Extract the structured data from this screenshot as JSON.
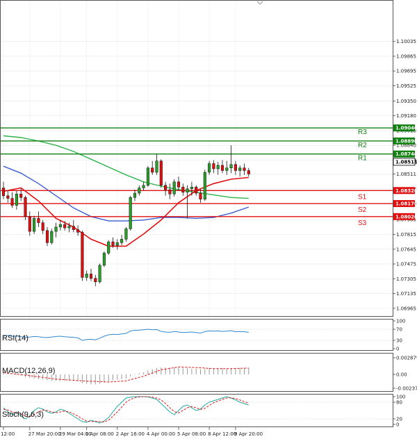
{
  "chart_data": [
    {
      "type": "candlestick",
      "title": "",
      "ylim": [
        1.069,
        1.104
      ],
      "y_ticks": [
        "1.10035",
        "1.09865",
        "1.09695",
        "1.09525",
        "1.09350",
        "1.09180",
        "1.09010",
        "1.08840",
        "1.08670",
        "1.08511",
        "1.08340",
        "1.08170",
        "1.07985",
        "1.07815",
        "1.07645",
        "1.07475",
        "1.07305",
        "1.07135",
        "1.06965"
      ],
      "x_ticks": [
        "12:00",
        "27 Mar 20:00",
        "29 Mar 04:00",
        "1 Apr 08:00",
        "2 Apr 16:00",
        "4 Apr 00:00",
        "5 Apr 08:00",
        "8 Apr 12:00",
        "9 Apr 20:00"
      ],
      "current_price": "1.08511",
      "levels": [
        {
          "name": "R3",
          "value": 1.0904,
          "label": "1.09040",
          "color": "#108010"
        },
        {
          "name": "R2",
          "value": 1.0889,
          "label": "1.08890",
          "color": "#108010"
        },
        {
          "name": "R1",
          "value": 1.0874,
          "label": "1.08740",
          "color": "#108010"
        },
        {
          "name": "S1",
          "value": 1.0832,
          "label": "1.08320",
          "color": "#e01010"
        },
        {
          "name": "S2",
          "value": 1.0817,
          "label": "1.08170",
          "color": "#e01010"
        },
        {
          "name": "S3",
          "value": 1.0802,
          "label": "1.08020",
          "color": "#e01010"
        }
      ],
      "candles": [
        [
          1.0835,
          1.0842,
          1.0822,
          1.0826
        ],
        [
          1.0826,
          1.0832,
          1.0818,
          1.0823
        ],
        [
          1.0823,
          1.083,
          1.0812,
          1.0815
        ],
        [
          1.0815,
          1.0832,
          1.081,
          1.0828
        ],
        [
          1.0828,
          1.0834,
          1.082,
          1.0824
        ],
        [
          1.0824,
          1.0826,
          1.0798,
          1.0802
        ],
        [
          1.0802,
          1.0808,
          1.078,
          1.0785
        ],
        [
          1.0785,
          1.0803,
          1.0782,
          1.08
        ],
        [
          1.08,
          1.0808,
          1.079,
          1.0795
        ],
        [
          1.0795,
          1.0798,
          1.0782,
          1.0786
        ],
        [
          1.0786,
          1.079,
          1.0768,
          1.0772
        ],
        [
          1.0772,
          1.0788,
          1.077,
          1.0785
        ],
        [
          1.0785,
          1.0795,
          1.0778,
          1.079
        ],
        [
          1.079,
          1.0798,
          1.0786,
          1.0793
        ],
        [
          1.0793,
          1.0797,
          1.0786,
          1.0789
        ],
        [
          1.0789,
          1.0795,
          1.0784,
          1.0791
        ],
        [
          1.0791,
          1.0798,
          1.0784,
          1.0787
        ],
        [
          1.0787,
          1.0792,
          1.078,
          1.0784
        ],
        [
          1.0784,
          1.0786,
          1.0728,
          1.0732
        ],
        [
          1.0732,
          1.074,
          1.0728,
          1.0736
        ],
        [
          1.0736,
          1.0742,
          1.0728,
          1.0731
        ],
        [
          1.0731,
          1.0735,
          1.0722,
          1.0727
        ],
        [
          1.0727,
          1.0748,
          1.0725,
          1.0746
        ],
        [
          1.0746,
          1.0762,
          1.0744,
          1.076
        ],
        [
          1.076,
          1.0775,
          1.0758,
          1.0773
        ],
        [
          1.0773,
          1.0778,
          1.0766,
          1.0769
        ],
        [
          1.0769,
          1.0776,
          1.0764,
          1.0772
        ],
        [
          1.0772,
          1.0781,
          1.0769,
          1.0776
        ],
        [
          1.0776,
          1.079,
          1.0773,
          1.0788
        ],
        [
          1.0788,
          1.0826,
          1.0786,
          1.0824
        ],
        [
          1.0824,
          1.0833,
          1.082,
          1.0829
        ],
        [
          1.0829,
          1.0838,
          1.0826,
          1.0835
        ],
        [
          1.0835,
          1.0842,
          1.0832,
          1.0838
        ],
        [
          1.0838,
          1.086,
          1.0836,
          1.0858
        ],
        [
          1.0858,
          1.0866,
          1.085,
          1.0853
        ],
        [
          1.0853,
          1.0874,
          1.085,
          1.0866
        ],
        [
          1.0866,
          1.0868,
          1.0835,
          1.0838
        ],
        [
          1.0838,
          1.0842,
          1.0826,
          1.0833
        ],
        [
          1.0833,
          1.084,
          1.0822,
          1.0828
        ],
        [
          1.0828,
          1.0845,
          1.0825,
          1.0842
        ],
        [
          1.0842,
          1.0848,
          1.0832,
          1.0836
        ],
        [
          1.0836,
          1.084,
          1.0826,
          1.083
        ],
        [
          1.083,
          1.0838,
          1.08,
          1.0834
        ],
        [
          1.0834,
          1.0842,
          1.0826,
          1.0836
        ],
        [
          1.0836,
          1.0838,
          1.0826,
          1.0829
        ],
        [
          1.0829,
          1.0834,
          1.0818,
          1.0822
        ],
        [
          1.0822,
          1.0856,
          1.082,
          1.0853
        ],
        [
          1.0853,
          1.0866,
          1.085,
          1.0863
        ],
        [
          1.0863,
          1.0867,
          1.0852,
          1.0857
        ],
        [
          1.0857,
          1.0865,
          1.085,
          1.0861
        ],
        [
          1.0861,
          1.0867,
          1.0852,
          1.0855
        ],
        [
          1.0855,
          1.0866,
          1.085,
          1.0858
        ],
        [
          1.0858,
          1.0884,
          1.0852,
          1.0862
        ],
        [
          1.0862,
          1.0866,
          1.085,
          1.0855
        ],
        [
          1.0855,
          1.0861,
          1.0848,
          1.0858
        ],
        [
          1.0858,
          1.0863,
          1.085,
          1.0855
        ],
        [
          1.0855,
          1.0858,
          1.0848,
          1.0851
        ]
      ],
      "ma_fast": [
        [
          0,
          1.0831
        ],
        [
          4,
          1.0835
        ],
        [
          8,
          1.082
        ],
        [
          12,
          1.08
        ],
        [
          16,
          1.079
        ],
        [
          20,
          1.0776
        ],
        [
          24,
          1.0768
        ],
        [
          28,
          1.0768
        ],
        [
          32,
          1.0782
        ],
        [
          36,
          1.0798
        ],
        [
          40,
          1.0818
        ],
        [
          44,
          1.0832
        ],
        [
          48,
          1.084
        ],
        [
          52,
          1.0845
        ],
        [
          56,
          1.0847
        ]
      ],
      "ma_mid": [
        [
          0,
          1.086
        ],
        [
          4,
          1.0852
        ],
        [
          8,
          1.084
        ],
        [
          12,
          1.0826
        ],
        [
          16,
          1.0812
        ],
        [
          20,
          1.0802
        ],
        [
          24,
          1.0797
        ],
        [
          28,
          1.0797
        ],
        [
          32,
          1.0798
        ],
        [
          36,
          1.0801
        ],
        [
          40,
          1.0801
        ],
        [
          44,
          1.08
        ],
        [
          48,
          1.0801
        ],
        [
          52,
          1.0806
        ],
        [
          56,
          1.0813
        ]
      ],
      "ma_slow": [
        [
          0,
          1.0895
        ],
        [
          4,
          1.0893
        ],
        [
          8,
          1.0889
        ],
        [
          12,
          1.0884
        ],
        [
          16,
          1.0877
        ],
        [
          20,
          1.0868
        ],
        [
          24,
          1.0859
        ],
        [
          28,
          1.085
        ],
        [
          32,
          1.0842
        ],
        [
          36,
          1.0837
        ],
        [
          40,
          1.0833
        ],
        [
          44,
          1.083
        ],
        [
          48,
          1.0827
        ],
        [
          52,
          1.0824
        ],
        [
          56,
          1.0823
        ]
      ]
    },
    {
      "type": "line",
      "title": "RSI(14)",
      "ylim": [
        0,
        100
      ],
      "y_ticks": [
        "100",
        "70",
        "30",
        "0"
      ],
      "values": [
        45,
        48,
        44,
        46,
        43,
        41,
        42,
        44,
        43,
        41,
        40,
        42,
        44,
        45,
        43,
        42,
        41,
        39,
        30,
        33,
        34,
        32,
        38,
        45,
        50,
        52,
        51,
        53,
        55,
        64,
        66,
        67,
        68,
        70,
        68,
        69,
        62,
        60,
        59,
        62,
        60,
        58,
        59,
        60,
        58,
        56,
        62,
        64,
        63,
        64,
        62,
        63,
        65,
        61,
        62,
        61,
        59
      ]
    },
    {
      "type": "histogram",
      "title": "MACD(12,26,9)",
      "ylim": [
        -0.002379,
        0.002879
      ],
      "y_ticks": [
        "0.002879",
        "0.00",
        "-0.002379"
      ],
      "values": [
        0.0002,
        0.0001,
        0.0,
        -0.0001,
        -0.0002,
        -0.0004,
        -0.0006,
        -0.0007,
        -0.0008,
        -0.0009,
        -0.001,
        -0.0011,
        -0.0011,
        -0.0011,
        -0.0011,
        -0.0011,
        -0.0011,
        -0.0012,
        -0.0015,
        -0.0016,
        -0.0017,
        -0.0017,
        -0.0016,
        -0.0014,
        -0.0012,
        -0.001,
        -0.0009,
        -0.0008,
        -0.0007,
        -0.0004,
        -0.0001,
        0.0002,
        0.0004,
        0.0007,
        0.0009,
        0.0011,
        0.0012,
        0.0012,
        0.0012,
        0.0012,
        0.0012,
        0.0011,
        0.0011,
        0.001,
        0.001,
        0.0009,
        0.001,
        0.0011,
        0.0011,
        0.0011,
        0.0011,
        0.0011,
        0.0011,
        0.0011,
        0.0011,
        0.0011,
        0.0011
      ],
      "signal": [
        [
          0,
          0.0003
        ],
        [
          6,
          -0.0002
        ],
        [
          12,
          -0.0008
        ],
        [
          18,
          -0.0011
        ],
        [
          24,
          -0.0013
        ],
        [
          28,
          -0.0011
        ],
        [
          32,
          -0.0003
        ],
        [
          36,
          0.0008
        ],
        [
          40,
          0.0013
        ],
        [
          44,
          0.0012
        ],
        [
          48,
          0.001
        ],
        [
          52,
          0.001
        ],
        [
          56,
          0.0011
        ]
      ]
    },
    {
      "type": "line",
      "title": "Stoch(9,6,3)",
      "ylim": [
        0,
        100
      ],
      "y_ticks": [
        "100",
        "80",
        "20",
        "0"
      ],
      "series_main": [
        60,
        45,
        35,
        45,
        30,
        20,
        30,
        50,
        60,
        55,
        45,
        40,
        45,
        55,
        50,
        40,
        30,
        20,
        10,
        8,
        15,
        10,
        5,
        12,
        25,
        45,
        65,
        80,
        95,
        98,
        100,
        100,
        100,
        99,
        95,
        90,
        75,
        60,
        45,
        35,
        50,
        65,
        70,
        60,
        50,
        55,
        70,
        80,
        85,
        90,
        95,
        100,
        95,
        88,
        80,
        75,
        70
      ],
      "series_signal": [
        55,
        52,
        45,
        42,
        38,
        30,
        28,
        35,
        45,
        52,
        50,
        45,
        42,
        45,
        48,
        45,
        38,
        30,
        20,
        12,
        10,
        11,
        10,
        9,
        15,
        30,
        45,
        62,
        80,
        90,
        96,
        99,
        100,
        100,
        98,
        95,
        88,
        75,
        60,
        46,
        42,
        50,
        60,
        64,
        60,
        54,
        58,
        68,
        78,
        84,
        90,
        95,
        96,
        93,
        88,
        82,
        76
      ]
    }
  ]
}
